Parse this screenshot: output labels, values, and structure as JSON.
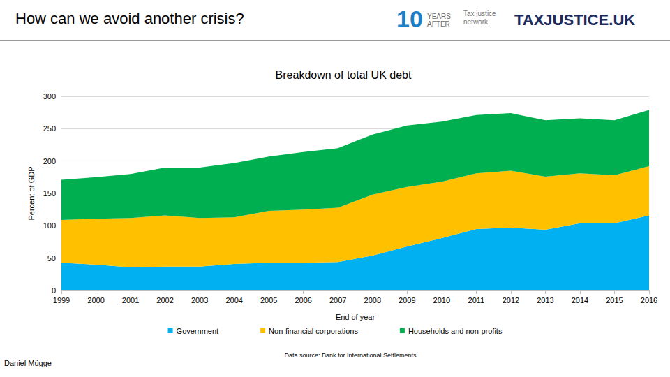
{
  "slide": {
    "heading": "How can we avoid another crisis?",
    "logos": [
      "10",
      "YEARS AFTER",
      "Tax justice network",
      "TAXJUSTICE.UK"
    ],
    "author": "Daniel Mügge"
  },
  "chart_data": {
    "type": "area",
    "title": "Breakdown of total UK debt",
    "x_label": "End of year",
    "y_label": "Percent of GDP",
    "annotations": [
      "Data source: Bank for International Settlements"
    ],
    "categories": [
      "1999",
      "2000",
      "2001",
      "2002",
      "2003",
      "2004",
      "2005",
      "2006",
      "2007",
      "2008",
      "2009",
      "2010",
      "2011",
      "2012",
      "2013",
      "2014",
      "2015",
      "2016"
    ],
    "series": [
      {
        "name": "Government",
        "color": "#00b0f0",
        "values": [
          43,
          40,
          36,
          37,
          37,
          41,
          43,
          43,
          44,
          54,
          68,
          81,
          95,
          97,
          94,
          104,
          104,
          116
        ]
      },
      {
        "name": "Non-financial corporations",
        "color": "#ffc000",
        "values": [
          66,
          71,
          76,
          79,
          75,
          72,
          80,
          82,
          84,
          94,
          92,
          87,
          86,
          88,
          82,
          77,
          74,
          76
        ]
      },
      {
        "name": "Households and non-profits",
        "color": "#00b050",
        "values": [
          62,
          64,
          68,
          74,
          78,
          84,
          84,
          89,
          92,
          93,
          95,
          93,
          90,
          89,
          87,
          85,
          85,
          87
        ]
      }
    ],
    "ylim": [
      0,
      300
    ],
    "yticks": [
      0,
      50,
      100,
      150,
      200,
      250,
      300
    ],
    "stacked": true,
    "grid": true,
    "legend": "bottom"
  }
}
